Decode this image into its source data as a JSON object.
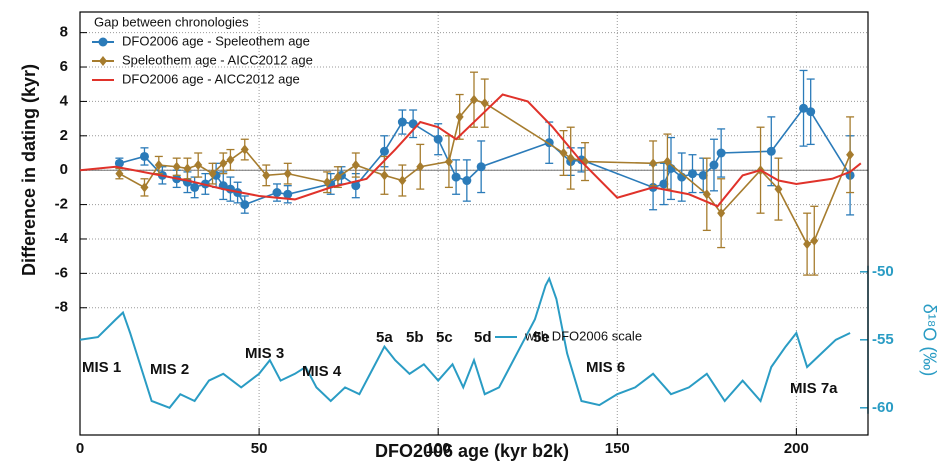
{
  "chart_data": {
    "type": "line",
    "xlabel": "DFO2006 age (kyr b2k)",
    "ylabel": "Difference in dating (kyr)",
    "y2label": "δ¹⁸O (‰)",
    "legend_title": "Gap between chronologies",
    "xlim": [
      0,
      220
    ],
    "xticks": [
      0,
      50,
      100,
      150,
      200
    ],
    "ylim": [
      -15.4,
      9.2
    ],
    "yticks": [
      -8,
      -6,
      -4,
      -2,
      0,
      2,
      4,
      6,
      8
    ],
    "y2lim": [
      -62,
      -30.9
    ],
    "y2ticks": [
      -50,
      -55,
      -60
    ],
    "grid": true,
    "annotations": [
      "MIS 1",
      "MIS 2",
      "MIS 3",
      "MIS 4",
      "5a",
      "5b",
      "5c",
      "5d",
      "5e",
      "MIS 6",
      "MIS 7a"
    ],
    "series": [
      {
        "name": "DFO2006 age - Speleothem age",
        "color": "#2b7bb9",
        "marker": "circle",
        "x": [
          11,
          18,
          23,
          27,
          30,
          32,
          35,
          38,
          40,
          42,
          44,
          46,
          55,
          58,
          70,
          73,
          77,
          85,
          90,
          93,
          100,
          105,
          108,
          112,
          131,
          137,
          140,
          160,
          163,
          165,
          168,
          171,
          174,
          177,
          179,
          193,
          202,
          204,
          215
        ],
        "values": [
          0.4,
          0.8,
          -0.3,
          -0.5,
          -0.7,
          -1.0,
          -0.8,
          -0.3,
          -0.9,
          -1.1,
          -1.3,
          -2.0,
          -1.3,
          -1.4,
          -0.8,
          -0.3,
          -0.9,
          1.1,
          2.8,
          2.7,
          1.8,
          -0.4,
          -0.6,
          0.2,
          1.6,
          0.5,
          0.6,
          -1.0,
          -0.8,
          0.1,
          -0.4,
          -0.2,
          -0.3,
          0.3,
          1.0,
          1.1,
          3.6,
          3.4,
          -0.3
        ],
        "errors": [
          0.3,
          0.5,
          0.5,
          0.5,
          0.6,
          0.6,
          0.6,
          0.7,
          0.8,
          0.7,
          0.6,
          0.5,
          0.5,
          0.5,
          0.6,
          0.5,
          0.7,
          0.9,
          0.7,
          0.8,
          0.9,
          1.0,
          1.2,
          1.5,
          1.2,
          0.8,
          0.7,
          1.3,
          1.2,
          1.8,
          1.4,
          1.1,
          1.0,
          1.5,
          1.4,
          2.0,
          2.2,
          1.9,
          2.3
        ]
      },
      {
        "name": "Speleothem age - AICC2012 age",
        "color": "#a67c2e",
        "marker": "diamond",
        "x": [
          11,
          18,
          22,
          27,
          30,
          33,
          37,
          40,
          42,
          46,
          52,
          58,
          69,
          72,
          77,
          85,
          90,
          95,
          103,
          106,
          110,
          113,
          135,
          137,
          141,
          160,
          164,
          175,
          179,
          190,
          195,
          203,
          205,
          215
        ],
        "values": [
          -0.2,
          -1.0,
          0.3,
          0.2,
          0.1,
          0.3,
          -0.2,
          0.4,
          0.6,
          1.2,
          -0.3,
          -0.2,
          -0.7,
          -0.4,
          0.3,
          -0.3,
          -0.6,
          0.2,
          0.5,
          3.1,
          4.1,
          3.9,
          1.0,
          0.7,
          0.5,
          0.4,
          0.5,
          -1.4,
          -2.5,
          0,
          -1.1,
          -4.3,
          -4.1,
          0.9
        ],
        "errors": [
          0.3,
          0.5,
          0.5,
          0.5,
          0.6,
          0.7,
          0.6,
          0.6,
          0.6,
          0.6,
          0.6,
          0.6,
          0.6,
          0.6,
          0.7,
          1.1,
          0.9,
          1.3,
          1.5,
          1.3,
          1.6,
          1.4,
          1.3,
          1.8,
          1.1,
          1.3,
          1.6,
          2.1,
          2.0,
          2.5,
          1.8,
          1.8,
          2.0,
          2.2
        ]
      },
      {
        "name": "DFO2006 age - AICC2012 age",
        "color": "#e0322a",
        "x": [
          0,
          10,
          20,
          30,
          40,
          50,
          60,
          70,
          80,
          88,
          95,
          100,
          105,
          112,
          118,
          125,
          132,
          140,
          150,
          160,
          170,
          178,
          185,
          190,
          195,
          200,
          210,
          215,
          218
        ],
        "values": [
          0,
          0.2,
          -0.2,
          -0.6,
          -1.1,
          -1.5,
          -1.7,
          -1.0,
          -0.5,
          1.2,
          2.8,
          2.5,
          1.8,
          3.2,
          4.4,
          4.0,
          2.5,
          0.5,
          -1.6,
          -1.0,
          -1.4,
          -2.1,
          -0.3,
          0,
          -0.6,
          -0.8,
          -0.5,
          -0.1,
          0.4
        ]
      },
      {
        "name": "with DFO2006 scale",
        "color": "#2a9cc4",
        "axis": "y2",
        "x": [
          0,
          5,
          10,
          12,
          14,
          17,
          20,
          25,
          28,
          32,
          36,
          40,
          45,
          50,
          53,
          56,
          60,
          63,
          66,
          70,
          74,
          78,
          82,
          85,
          88,
          92,
          96,
          100,
          104,
          107,
          110,
          113,
          117,
          120,
          124,
          127,
          130,
          131,
          133,
          136,
          140,
          145,
          150,
          155,
          160,
          165,
          170,
          175,
          180,
          185,
          190,
          193,
          197,
          200,
          203,
          207,
          211,
          215
        ],
        "values": [
          -55.0,
          -54.8,
          -53.5,
          -53,
          -54.5,
          -57,
          -59.5,
          -60,
          -59,
          -59.5,
          -58,
          -57.5,
          -58.5,
          -57.5,
          -56.5,
          -58,
          -57.5,
          -57,
          -58.5,
          -59.5,
          -58.5,
          -59,
          -57,
          -55.5,
          -56.5,
          -57.5,
          -56.8,
          -58,
          -56.8,
          -58.5,
          -56.5,
          -59,
          -58.5,
          -57,
          -55,
          -53.5,
          -51,
          -50.5,
          -52,
          -56,
          -59.5,
          -59.8,
          -59,
          -58.5,
          -57.5,
          -59,
          -58.5,
          -57.5,
          -59.5,
          -58,
          -59.5,
          -57,
          -55.5,
          -54.5,
          -57,
          -56,
          -55,
          -54.5
        ]
      }
    ]
  }
}
